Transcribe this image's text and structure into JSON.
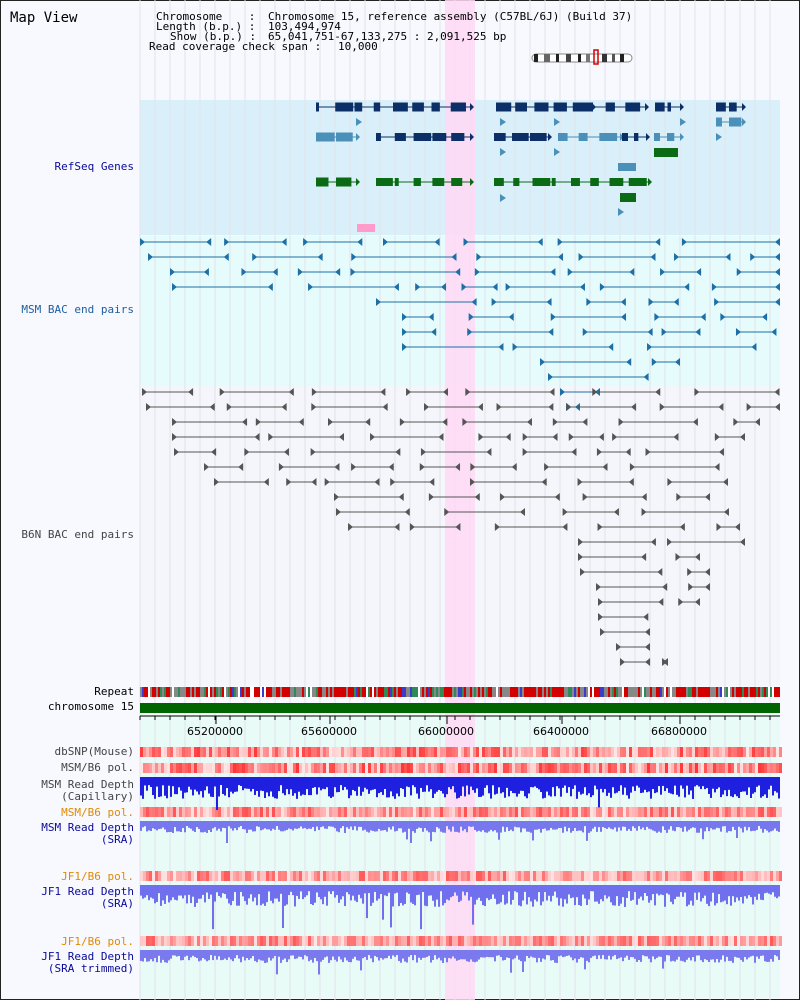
{
  "title": "Map View",
  "header": {
    "chromosome_key": "Chromosome    :",
    "chromosome_val": "Chromosome 15, reference assembly (C57BL/6J) (Build 37)",
    "length_key": "Length (b.p.) :",
    "length_val": "103,494,974",
    "show_key": "Show (b.p.) :",
    "show_val": "65,041,751-67,133,275 : 2,091,525 bp",
    "span_key": "Read coverage check span :",
    "span_val": "10,000"
  },
  "tracks": {
    "refseq": "RefSeq Genes",
    "msm_bac": "MSM BAC end pairs",
    "b6n_bac": "B6N BAC end pairs",
    "repeat": "Repeat",
    "chromosome": "chromosome 15",
    "dbsnp": "dbSNP(Mouse)",
    "msm_b6_pol": "MSM/B6 pol.",
    "msm_depth_cap_1": "MSM Read Depth",
    "msm_depth_cap_2": "(Capillary)",
    "msm_b6_pol2": "MSM/B6 pol.",
    "msm_depth_sra_1": "MSM Read Depth",
    "msm_depth_sra_2": "(SRA)",
    "jf1_b6_pol": "JF1/B6 pol.",
    "jf1_depth_sra_1": "JF1 Read Depth",
    "jf1_depth_sra_2": "(SRA)",
    "jf1_b6_pol2": "JF1/B6 pol.",
    "jf1_depth_trim_1": "JF1 Read Depth",
    "jf1_depth_trim_2": "(SRA trimmed)"
  },
  "axis_ticks": [
    "65200000",
    "65600000",
    "66000000",
    "66400000",
    "66800000"
  ],
  "colors": {
    "refseq_bg": "#d9f0fa",
    "msm_bg": "#e6fcfc",
    "highlight": "#ffd8f4",
    "gene_dark": "#0b2f66",
    "gene_mid": "#4a90b8",
    "gene_green": "#0a6b14",
    "msm_line": "#1d6fa5",
    "b6n_line": "#555555",
    "chromosome_bar": "#006400",
    "depth_blue": "#2b2bdd",
    "depth_light": "#7a7aee",
    "label_blue": "#0a0a99",
    "label_orange": "#e08a00",
    "label_gray": "#444444"
  }
}
